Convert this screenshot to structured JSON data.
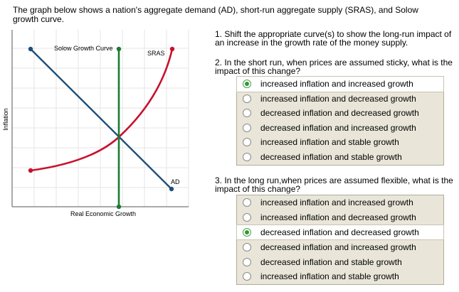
{
  "intro": "The graph below shows a nation's aggregate demand (AD), short-run aggregate supply (SRAS), and Solow growth curve.",
  "graph": {
    "y_label": "Inflation",
    "x_label": "Real Economic Growth",
    "solow_label": "Solow Growth Curve",
    "sras_label": "SRAS",
    "ad_label": "AD",
    "colors": {
      "ad": "#1f4e79",
      "sras": "#c8102e",
      "solow": "#1b7a33",
      "grid": "#e6e6e6",
      "axis": "#555555"
    }
  },
  "questions": {
    "q1": "1. Shift the appropriate curve(s) to show the long-run impact of an increase in the growth rate of the money supply.",
    "q2": {
      "prompt": "2. In the short run, when prices are assumed sticky, what is the impact of this change?",
      "options": [
        {
          "label": "increased inflation and increased growth",
          "selected": true
        },
        {
          "label": "increased inflation and decreased growth",
          "selected": false
        },
        {
          "label": "decreased inflation and decreased growth",
          "selected": false
        },
        {
          "label": "decreased inflation and increased growth",
          "selected": false
        },
        {
          "label": "increased inflation and stable growth",
          "selected": false
        },
        {
          "label": "decreased inflation and stable growth",
          "selected": false
        }
      ]
    },
    "q3": {
      "prompt": "3. In the long run,when prices are assumed flexible, what is the impact of this change?",
      "options": [
        {
          "label": "increased inflation and increased growth",
          "selected": false
        },
        {
          "label": "increased inflation and decreased growth",
          "selected": false
        },
        {
          "label": "decreased inflation and decreased growth",
          "selected": true
        },
        {
          "label": "decreased inflation and increased growth",
          "selected": false
        },
        {
          "label": "decreased inflation and stable growth",
          "selected": false
        },
        {
          "label": "increased inflation and stable growth",
          "selected": false
        }
      ]
    }
  }
}
